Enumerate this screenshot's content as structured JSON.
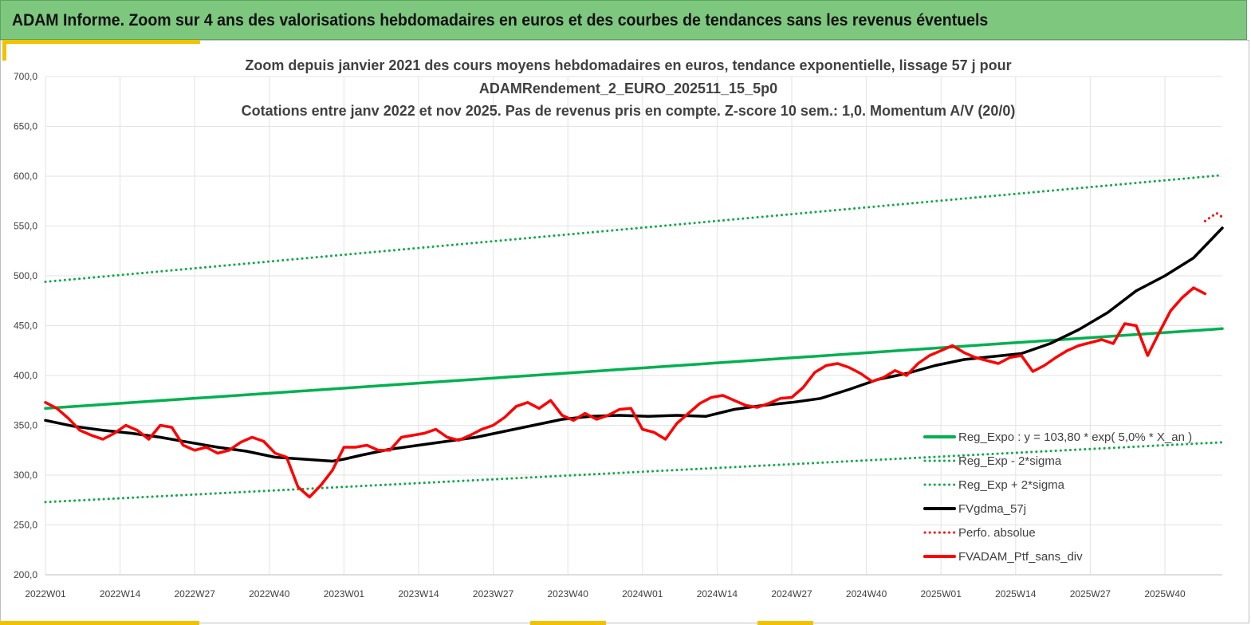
{
  "header": {
    "title": "ADAM Informe. Zoom sur 4 ans des valorisations hebdomadaires en euros et des courbes de tendances sans les revenus éventuels"
  },
  "colors": {
    "header_bg": "#7dc77e",
    "accent": "#f2c200",
    "green": "#00b050",
    "dotted_green": "#11a84c",
    "black": "#000000",
    "red": "#ff0000"
  },
  "chart_data": {
    "type": "line",
    "title": [
      "Zoom depuis janvier 2021 des cours moyens hebdomadaires  en euros, tendance exponentielle, lissage 57 j pour",
      "ADAMRendement_2_EURO_202511_15_5p0",
      "Cotations  entre janv 2022 et nov 2025. Pas de revenus pris en compte. Z-score 10 sem.: 1,0. Momentum A/V (20/0)"
    ],
    "ylim": [
      200,
      700
    ],
    "yticks": [
      "200,0",
      "250,0",
      "300,0",
      "350,0",
      "400,0",
      "450,0",
      "500,0",
      "550,0",
      "600,0",
      "650,0",
      "700,0"
    ],
    "xticks": [
      "2022W01",
      "2022W14",
      "2022W27",
      "2022W40",
      "2023W01",
      "2023W14",
      "2023W27",
      "2023W40",
      "2024W01",
      "2024W14",
      "2024W27",
      "2024W40",
      "2025W01",
      "2025W14",
      "2025W27",
      "2025W40"
    ],
    "grid": true,
    "legend_position": "right",
    "series": [
      {
        "name": "Reg_Expo : y = 103,80 * exp( 5,0% *  X_an )",
        "style": "solid",
        "color": "#00b050",
        "x": [
          0,
          205
        ],
        "y": [
          367,
          447
        ]
      },
      {
        "name": "Reg_Exp - 2*sigma",
        "style": "dotted",
        "color": "#11a84c",
        "x": [
          0,
          205
        ],
        "y": [
          273,
          333
        ]
      },
      {
        "name": "Reg_Exp + 2*sigma",
        "style": "dotted",
        "color": "#11a84c",
        "x": [
          0,
          205
        ],
        "y": [
          494,
          601
        ]
      },
      {
        "name": "FVgdma_57j",
        "style": "solid",
        "color": "#000000",
        "x": [
          0,
          5,
          10,
          15,
          20,
          25,
          30,
          35,
          40,
          45,
          50,
          52,
          55,
          60,
          65,
          70,
          75,
          80,
          85,
          90,
          95,
          100,
          105,
          110,
          115,
          120,
          125,
          130,
          135,
          140,
          145,
          150,
          155,
          160,
          165,
          170,
          175,
          180,
          185,
          190,
          195,
          200,
          205
        ],
        "y": [
          355,
          349,
          345,
          342,
          338,
          333,
          328,
          324,
          318,
          316,
          314,
          316,
          320,
          326,
          330,
          334,
          338,
          344,
          350,
          356,
          359,
          360,
          359,
          360,
          359,
          366,
          370,
          373,
          377,
          386,
          396,
          402,
          410,
          416,
          419,
          422,
          432,
          446,
          463,
          485,
          500,
          518,
          548
        ]
      },
      {
        "name": "Perfo. absolue",
        "style": "dotted",
        "color": "#ff0000",
        "x": [
          202,
          204,
          205
        ],
        "y": [
          555,
          563,
          559
        ]
      },
      {
        "name": "FVADAM_Ptf_sans_div",
        "style": "solid",
        "color": "#ff0000",
        "x": [
          0,
          2,
          4,
          6,
          8,
          10,
          12,
          14,
          16,
          18,
          20,
          22,
          24,
          26,
          28,
          30,
          32,
          34,
          36,
          38,
          40,
          42,
          44,
          46,
          48,
          50,
          52,
          54,
          56,
          58,
          60,
          62,
          64,
          66,
          68,
          70,
          72,
          74,
          76,
          78,
          80,
          82,
          84,
          86,
          88,
          90,
          92,
          94,
          96,
          98,
          100,
          102,
          104,
          106,
          108,
          110,
          112,
          114,
          116,
          118,
          120,
          122,
          124,
          126,
          128,
          130,
          132,
          134,
          136,
          138,
          140,
          142,
          144,
          146,
          148,
          150,
          152,
          154,
          156,
          158,
          160,
          162,
          164,
          166,
          168,
          170,
          172,
          174,
          176,
          178,
          180,
          182,
          184,
          186,
          188,
          190,
          192,
          194,
          196,
          198,
          200,
          202
        ],
        "y": [
          373,
          367,
          357,
          345,
          340,
          336,
          342,
          350,
          345,
          336,
          350,
          348,
          330,
          325,
          328,
          322,
          325,
          333,
          338,
          334,
          322,
          318,
          288,
          278,
          290,
          305,
          328,
          328,
          330,
          325,
          325,
          338,
          340,
          342,
          346,
          338,
          335,
          340,
          346,
          350,
          358,
          369,
          373,
          367,
          375,
          360,
          355,
          362,
          356,
          360,
          366,
          367,
          346,
          343,
          336,
          352,
          362,
          372,
          378,
          380,
          375,
          370,
          368,
          372,
          377,
          378,
          388,
          403,
          410,
          412,
          408,
          402,
          394,
          398,
          405,
          400,
          412,
          420,
          425,
          430,
          423,
          418,
          415,
          412,
          418,
          420,
          404,
          410,
          418,
          425,
          430,
          433,
          436,
          432,
          452,
          450,
          420,
          443,
          465,
          478,
          488,
          482
        ]
      }
    ]
  }
}
